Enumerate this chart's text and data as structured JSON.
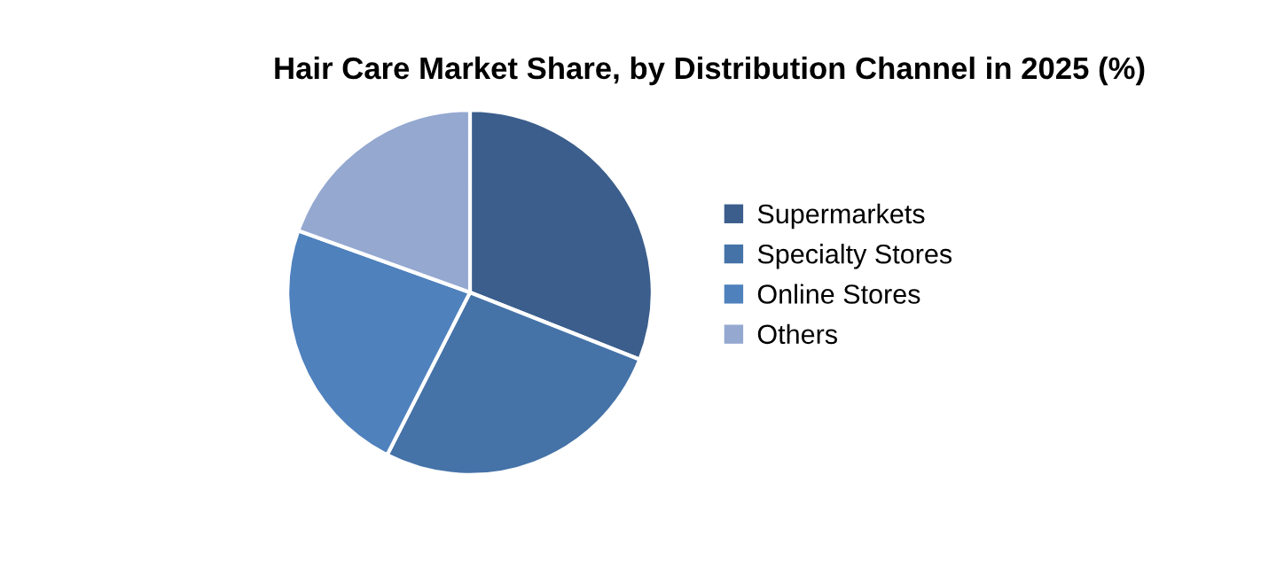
{
  "chart_data": {
    "type": "pie",
    "title": "Hair Care Market Share, by Distribution Channel in 2025 (%)",
    "categories": [
      "Supermarkets",
      "Specialty Stores",
      "Online Stores",
      "Others"
    ],
    "values": [
      31,
      26.5,
      23,
      19.5
    ],
    "colors": [
      "#3b5e8c",
      "#4573a8",
      "#4f81bd",
      "#94a8d0"
    ],
    "legend": "right"
  }
}
